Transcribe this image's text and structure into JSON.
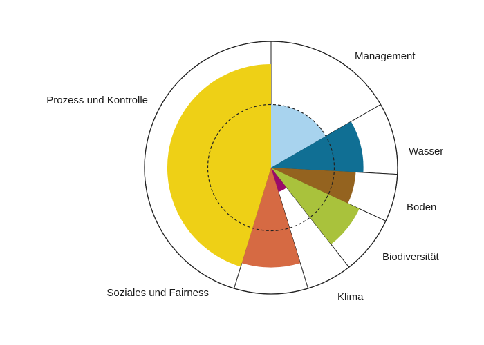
{
  "chart_data": {
    "type": "polar-area",
    "title": "",
    "max_value": 100,
    "reference_value": 50,
    "reference_line": "dashed",
    "categories": [
      {
        "label": "Management",
        "value": 50,
        "color": "#a8d3ee"
      },
      {
        "label": "Wasser",
        "value": 73,
        "color": "#106f94"
      },
      {
        "label": "Boden",
        "value": 67,
        "color": "#94631f"
      },
      {
        "label": "Biodiversität",
        "value": 77,
        "color": "#a9c23c"
      },
      {
        "label": "Klima",
        "value": 20,
        "color": "#9a0b69"
      },
      {
        "label": "Soziales und Fairness",
        "value": 79,
        "color": "#d66a43"
      },
      {
        "label": "Prozess und Kontrolle",
        "value": 82,
        "color": "#eed016"
      }
    ]
  }
}
